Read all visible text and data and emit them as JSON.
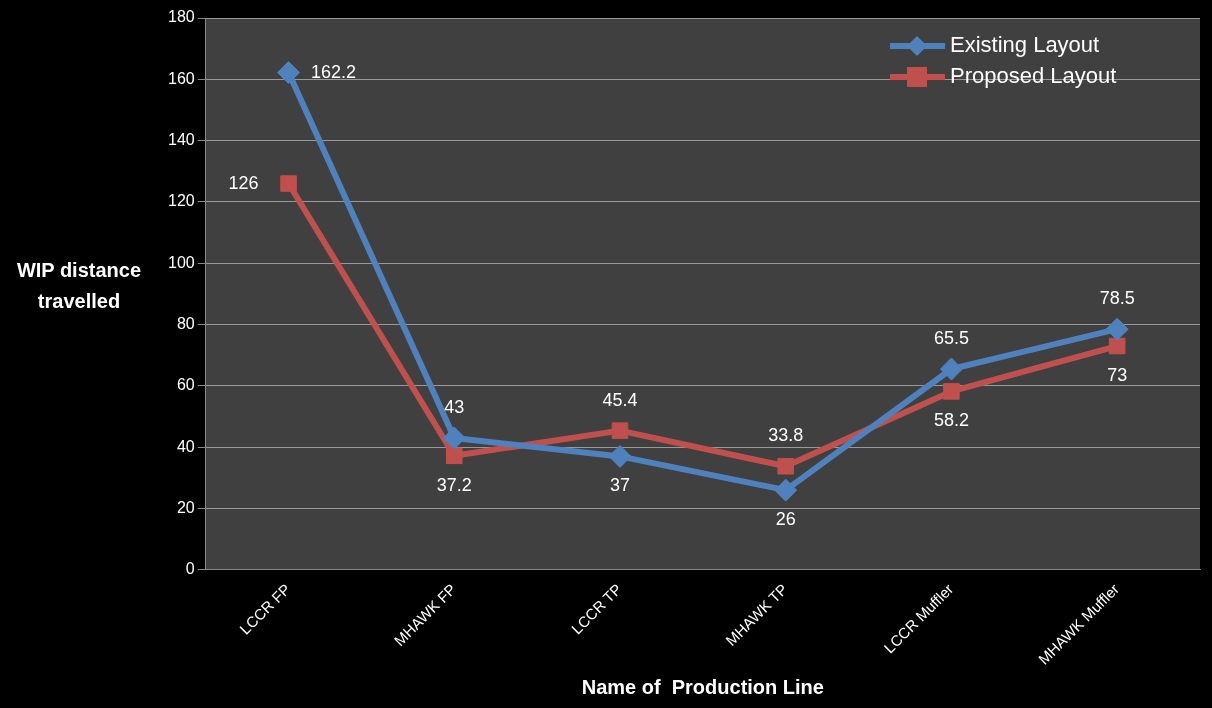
{
  "chart_data": {
    "type": "line",
    "xlabel": "Name of  Production Line",
    "ylabel": "WIP distance travelled",
    "categories": [
      "LCCR FP",
      "MHAWK FP",
      "LCCR TP",
      "MHAWK TP",
      "LCCR Muffler",
      "MHAWK Muffler"
    ],
    "series": [
      {
        "name": "Existing Layout",
        "color": "#4f81bd",
        "marker": "diamond",
        "values": [
          162.2,
          43,
          37,
          26,
          65.5,
          78.5
        ]
      },
      {
        "name": "Proposed Layout",
        "color": "#c0504d",
        "marker": "square",
        "values": [
          126,
          37.2,
          45.4,
          33.8,
          58.2,
          73
        ]
      }
    ],
    "ylim": [
      0,
      180
    ],
    "yticks": [
      0,
      20,
      40,
      60,
      80,
      100,
      120,
      140,
      160,
      180
    ],
    "grid": "y",
    "legend": "top right",
    "data_labels": true,
    "line_style": "solid"
  }
}
